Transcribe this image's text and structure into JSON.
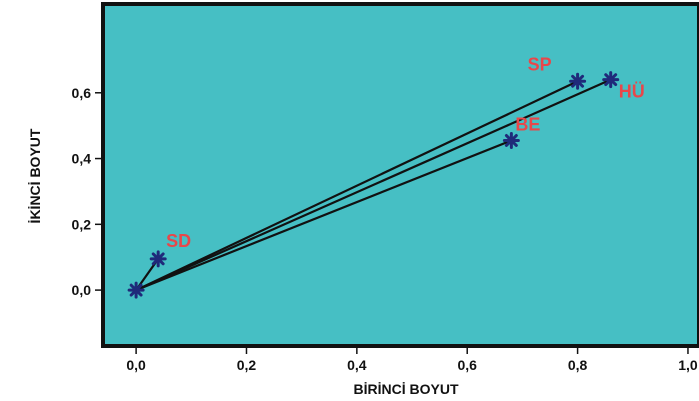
{
  "chart_data": {
    "type": "scatter",
    "title": "",
    "xlabel": "BİRİNCİ BOYUT",
    "ylabel": "İKİNCİ BOYUT",
    "xlim": [
      -0.06,
      1.02
    ],
    "ylim": [
      -0.17,
      0.87
    ],
    "x_ticks": [
      {
        "value": 0.0,
        "label": "0,0"
      },
      {
        "value": 0.2,
        "label": "0,2"
      },
      {
        "value": 0.4,
        "label": "0,4"
      },
      {
        "value": 0.6,
        "label": "0,6"
      },
      {
        "value": 0.8,
        "label": "0,8"
      },
      {
        "value": 1.0,
        "label": "1,0"
      }
    ],
    "y_ticks": [
      {
        "value": 0.0,
        "label": "0,0"
      },
      {
        "value": 0.2,
        "label": "0,2"
      },
      {
        "value": 0.4,
        "label": "0,4"
      },
      {
        "value": 0.6,
        "label": "0,6"
      }
    ],
    "origin": {
      "x": 0.0,
      "y": 0.0
    },
    "points": [
      {
        "label": "SD",
        "x": 0.04,
        "y": 0.095
      },
      {
        "label": "SP",
        "x": 0.8,
        "y": 0.635
      },
      {
        "label": "HÜ",
        "x": 0.86,
        "y": 0.64
      },
      {
        "label": "BE",
        "x": 0.68,
        "y": 0.455
      }
    ],
    "grid": false,
    "legend": "none",
    "colors": {
      "plot_background": "#46BFC4",
      "vector_line": "#111111",
      "marker": "#1F2A7A",
      "point_label": "#E8474A"
    }
  }
}
